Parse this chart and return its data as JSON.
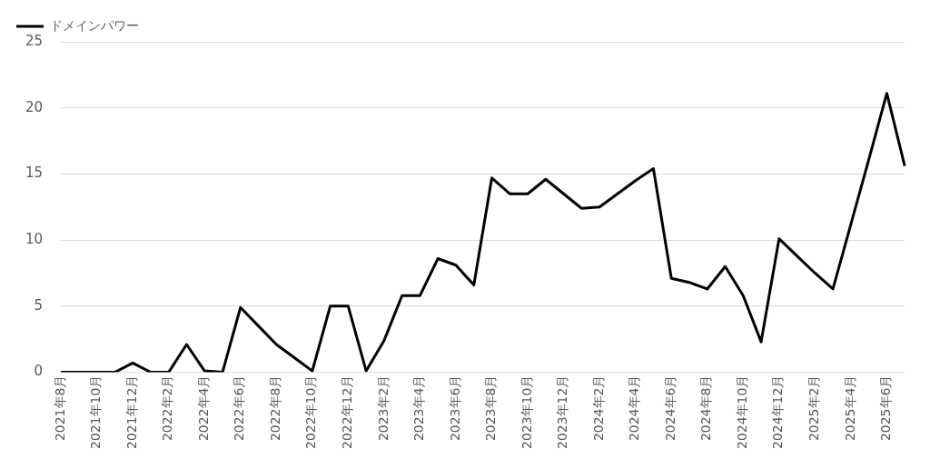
{
  "chart_data": {
    "type": "line",
    "categories": [
      "2021年8月",
      null,
      "2021年10月",
      null,
      "2021年12月",
      null,
      "2022年2月",
      null,
      "2022年4月",
      null,
      "2022年6月",
      null,
      "2022年8月",
      null,
      "2022年10月",
      null,
      "2022年12月",
      null,
      "2023年2月",
      null,
      "2023年4月",
      null,
      "2023年6月",
      null,
      "2023年8月",
      null,
      "2023年10月",
      null,
      "2023年12月",
      null,
      "2024年2月",
      null,
      "2024年4月",
      null,
      "2024年6月",
      null,
      "2024年8月",
      null,
      "2024年10月",
      null,
      "2024年12月",
      null,
      "2025年2月",
      null,
      "2025年4月",
      null,
      "2025年6月",
      null
    ],
    "series": [
      {
        "name": "ドメインパワー",
        "color": "#000000",
        "values": [
          0,
          0,
          0,
          0,
          0.7,
          0,
          0,
          2.1,
          0.1,
          0,
          4.9,
          3.5,
          2.1,
          1.1,
          0.1,
          5.0,
          5.0,
          0.1,
          2.4,
          5.8,
          5.8,
          8.6,
          8.1,
          6.6,
          14.7,
          13.5,
          13.5,
          14.6,
          13.5,
          12.4,
          12.5,
          13.5,
          14.5,
          15.4,
          7.1,
          6.8,
          6.3,
          8.0,
          5.8,
          2.3,
          10.1,
          8.8,
          7.5,
          6.3,
          11.2,
          16.1,
          21.1,
          15.6
        ]
      }
    ],
    "ylim": [
      0,
      25
    ],
    "yticks": [
      0,
      5,
      10,
      15,
      20,
      25
    ],
    "grid": "y",
    "legend": "top left",
    "marker": "none",
    "line_style": "solid"
  }
}
